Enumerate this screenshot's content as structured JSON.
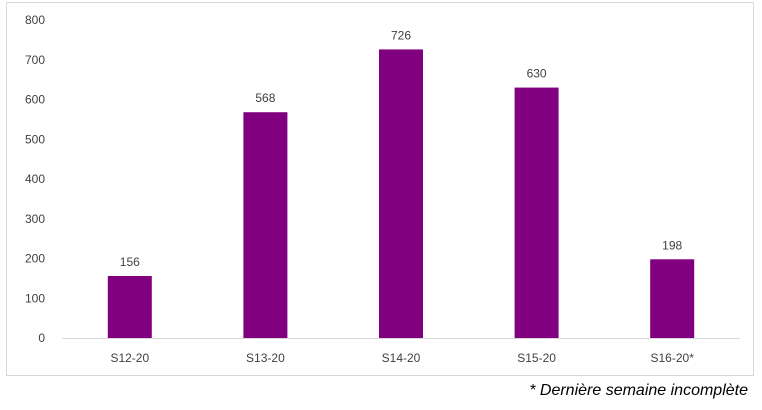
{
  "chart_data": {
    "type": "bar",
    "categories": [
      "S12-20",
      "S13-20",
      "S14-20",
      "S15-20",
      "S16-20*"
    ],
    "values": [
      156,
      568,
      726,
      630,
      198
    ],
    "title": "",
    "xlabel": "",
    "ylabel": "",
    "ylim": [
      0,
      800
    ],
    "yticks": [
      0,
      100,
      200,
      300,
      400,
      500,
      600,
      700,
      800
    ],
    "grid": false,
    "legend": "none",
    "bar_color": "#800080",
    "data_labels": [
      "156",
      "568",
      "726",
      "630",
      "198"
    ]
  },
  "footnote": "* Dernière semaine incomplète"
}
